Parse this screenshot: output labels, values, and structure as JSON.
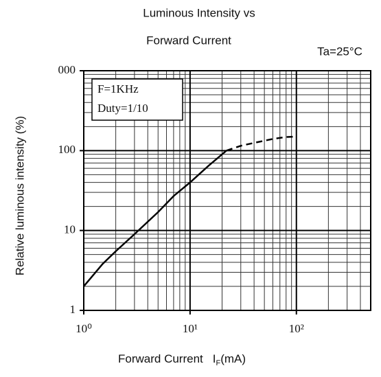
{
  "chart_data": {
    "type": "line",
    "title": [
      "Luminous Intensity vs",
      "Forward Current"
    ],
    "condition": "Ta=25°C",
    "annotations": [
      "F=1KHz",
      "Duty=1/10"
    ],
    "y_label": "Relative luminous intensity  (%)",
    "x_label": "Forward Current",
    "x_label_symbol": "I",
    "x_label_subscript": "F",
    "x_label_unit": "(mA)",
    "log_x": true,
    "log_y": true,
    "grid": true,
    "xlim": [
      1,
      500
    ],
    "ylim": [
      1,
      1000
    ],
    "xticks": [
      {
        "value": 1,
        "label": "10⁰"
      },
      {
        "value": 10,
        "label": "10¹"
      },
      {
        "value": 100,
        "label": "10²"
      }
    ],
    "yticks": [
      1,
      10,
      100,
      {
        "value": 1000,
        "label": "000"
      }
    ],
    "xminor": [
      2,
      3,
      4,
      5,
      6,
      7,
      8,
      9,
      20,
      30,
      40,
      50,
      60,
      70,
      80,
      90,
      200,
      300,
      400,
      500
    ],
    "yminor": [
      2,
      3,
      4,
      5,
      6,
      7,
      8,
      9,
      20,
      30,
      40,
      50,
      60,
      70,
      80,
      90,
      200,
      300,
      400,
      500,
      600,
      700,
      800,
      900
    ],
    "series": [
      {
        "color": "#000000",
        "dash": false,
        "x": [
          1,
          1.5,
          2,
          3,
          5,
          7,
          10,
          15,
          22
        ],
        "values": [
          2,
          3.8,
          5.5,
          9,
          17,
          27,
          40,
          65,
          100
        ]
      },
      {
        "color": "#000000",
        "dash": true,
        "x": [
          22,
          30,
          40,
          60,
          80,
          100
        ],
        "values": [
          100,
          115,
          125,
          140,
          148,
          150
        ]
      }
    ]
  }
}
